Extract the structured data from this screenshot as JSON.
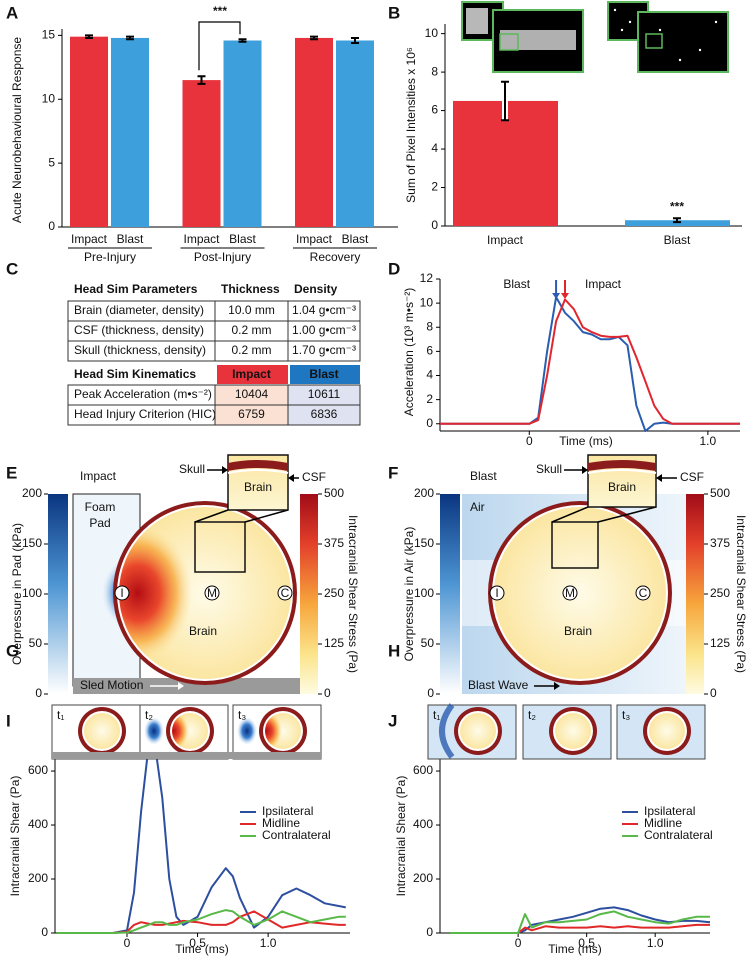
{
  "panel_labels": [
    "A",
    "B",
    "C",
    "D",
    "E",
    "F",
    "G",
    "H",
    "I",
    "J"
  ],
  "chart_data": [
    {
      "type": "grouped-bar",
      "y_label": "Acute Neurobehavioural Response",
      "groups": [
        "Pre-Injury",
        "Post-Injury",
        "Recovery"
      ],
      "series": [
        {
          "name": "Impact",
          "color": "#e8323c",
          "values": [
            14.9,
            11.5,
            14.8
          ],
          "errors": [
            0.1,
            0.3,
            0.1
          ]
        },
        {
          "name": "Blast",
          "color": "#3d9fdb",
          "values": [
            14.8,
            14.6,
            14.6
          ],
          "errors": [
            0.1,
            0.1,
            0.2
          ]
        }
      ],
      "ylim": [
        0,
        15.5
      ],
      "yticks": [
        0,
        5,
        10,
        15
      ],
      "annotation": "***"
    },
    {
      "type": "bar",
      "y_label": "Sum of Pixel Intensities x 10⁶",
      "categories": [
        "Impact",
        "Blast"
      ],
      "values": [
        6.5,
        0.3
      ],
      "errors": [
        1.0,
        0.1
      ],
      "colors": [
        "#e8323c",
        "#3d9fdb"
      ],
      "ylim": [
        0,
        10.5
      ],
      "yticks": [
        0,
        2,
        4,
        6,
        8,
        10
      ],
      "annotation": "***"
    },
    {
      "type": "line",
      "y_label": "Acceleration (10³ m•s⁻²)",
      "x_label": "Time (ms)",
      "x": [
        -0.5,
        -0.4,
        -0.3,
        -0.2,
        -0.1,
        0,
        0.05,
        0.1,
        0.15,
        0.2,
        0.25,
        0.3,
        0.35,
        0.4,
        0.45,
        0.5,
        0.55,
        0.6,
        0.65,
        0.7,
        0.75,
        0.8,
        0.9,
        1.0,
        1.1,
        1.18
      ],
      "series": [
        {
          "name": "Blast",
          "color": "#2a5db0",
          "values": [
            0,
            0,
            0,
            0,
            0,
            0,
            0.5,
            6,
            10.5,
            9.2,
            8.5,
            7.6,
            7.4,
            7.0,
            7.0,
            7.2,
            6.5,
            1.5,
            -0.6,
            0,
            0.1,
            0,
            0,
            0,
            0,
            0
          ]
        },
        {
          "name": "Impact",
          "color": "#e0262f",
          "values": [
            0,
            0,
            0,
            0,
            0,
            0,
            0.3,
            4,
            8.5,
            10.3,
            9.5,
            8.0,
            7.6,
            7.3,
            7.2,
            7.2,
            7.3,
            5.5,
            3.5,
            1.5,
            0.4,
            0,
            0,
            0,
            0,
            0
          ]
        }
      ],
      "xlim": [
        -0.5,
        1.18
      ],
      "xticks": [
        0,
        {
          "value": 1,
          "label": "1.0"
        }
      ],
      "ylim": [
        -0.6,
        12
      ],
      "yticks": [
        0,
        2,
        4,
        6,
        8,
        10,
        12
      ]
    },
    {
      "type": "line",
      "y_label": "Intracranial Shear (Pa)",
      "x_label": "Time (ms)",
      "x": [
        -0.5,
        -0.4,
        -0.3,
        -0.2,
        -0.1,
        0,
        0.05,
        0.1,
        0.15,
        0.2,
        0.25,
        0.3,
        0.35,
        0.4,
        0.5,
        0.6,
        0.7,
        0.75,
        0.8,
        0.9,
        1.0,
        1.1,
        1.2,
        1.3,
        1.4,
        1.5,
        1.55
      ],
      "series": [
        {
          "name": "Ipsilateral",
          "color": "#2d4fa0",
          "values": [
            0,
            0,
            0,
            0,
            0,
            10,
            150,
            450,
            680,
            690,
            500,
            200,
            60,
            30,
            60,
            170,
            240,
            210,
            130,
            20,
            60,
            140,
            165,
            140,
            110,
            100,
            95
          ]
        },
        {
          "name": "Midline",
          "color": "#e02828",
          "values": [
            0,
            0,
            0,
            0,
            0,
            5,
            30,
            40,
            35,
            30,
            30,
            35,
            40,
            45,
            40,
            30,
            30,
            40,
            60,
            80,
            50,
            20,
            30,
            40,
            35,
            30,
            30
          ]
        },
        {
          "name": "Contralateral",
          "color": "#58b848",
          "values": [
            0,
            0,
            0,
            0,
            0,
            2,
            10,
            20,
            30,
            40,
            40,
            30,
            30,
            40,
            50,
            70,
            85,
            80,
            60,
            30,
            50,
            80,
            60,
            40,
            50,
            60,
            60
          ]
        }
      ],
      "xlim": [
        -0.51,
        1.58
      ],
      "xticks": [
        0,
        0.5,
        {
          "value": 1,
          "label": "1.0"
        }
      ],
      "ylim": [
        0,
        715
      ],
      "yticks": [
        0,
        200,
        400,
        600
      ]
    },
    {
      "type": "line",
      "y_label": "Intracranial Shear (Pa)",
      "x_label": "Time (ms)",
      "x": [
        -0.5,
        -0.4,
        -0.3,
        -0.2,
        -0.1,
        0,
        0.05,
        0.1,
        0.2,
        0.3,
        0.4,
        0.5,
        0.6,
        0.7,
        0.8,
        0.9,
        1.0,
        1.1,
        1.2,
        1.3,
        1.4
      ],
      "series": [
        {
          "name": "Ipsilateral",
          "color": "#2d4fa0",
          "values": [
            0,
            0,
            0,
            0,
            0,
            0,
            10,
            30,
            40,
            50,
            60,
            75,
            90,
            95,
            85,
            65,
            50,
            40,
            45,
            45,
            40
          ]
        },
        {
          "name": "Midline",
          "color": "#e02828",
          "values": [
            0,
            0,
            0,
            0,
            0,
            0,
            20,
            10,
            25,
            20,
            20,
            20,
            25,
            20,
            25,
            20,
            20,
            20,
            25,
            30,
            30
          ]
        },
        {
          "name": "Contralateral",
          "color": "#58b848",
          "values": [
            0,
            0,
            0,
            0,
            0,
            0,
            70,
            20,
            40,
            40,
            45,
            50,
            70,
            80,
            60,
            50,
            40,
            35,
            50,
            60,
            60
          ]
        }
      ],
      "xlim": [
        -0.57,
        1.4
      ],
      "xticks": [
        0,
        0.5,
        {
          "value": 1,
          "label": "1.0"
        }
      ],
      "ylim": [
        0,
        715
      ],
      "yticks": [
        0,
        200,
        400,
        600
      ]
    }
  ],
  "table_c": {
    "parameters": {
      "header": [
        "Head Sim Parameters",
        "Thickness",
        "Density"
      ],
      "rows": [
        [
          "Brain (diameter, density)",
          "10.0 mm",
          "1.04 g•cm⁻³"
        ],
        [
          "CSF (thickness, density)",
          "0.2 mm",
          "1.00 g•cm⁻³"
        ],
        [
          "Skull (thickness, density)",
          "0.2 mm",
          "1.70 g•cm⁻³"
        ]
      ]
    },
    "kinematics": {
      "header": [
        "Head Sim Kinematics",
        "Impact",
        "Blast"
      ],
      "rows": [
        [
          "Peak Acceleration (m•s⁻²)",
          10404,
          10611
        ],
        [
          "Head Injury Criterion (HIC)",
          6759,
          6836
        ]
      ]
    }
  },
  "simulations": [
    {
      "title": "Impact",
      "medium_label": [
        "Foam",
        "Pad"
      ],
      "skull": "Skull",
      "csf": "CSF",
      "inset_label": "Brain",
      "regions": [
        "I",
        "M",
        "C"
      ],
      "brain": "Brain",
      "motion": "Sled Motion",
      "left_label": "Overpressure in Pad (kPa)",
      "left_lim": [
        0,
        200
      ],
      "left_ticks": [
        0,
        50,
        100,
        150,
        200
      ],
      "right_label": "Intracranial Shear Stress (Pa)",
      "right_lim": [
        0,
        500
      ],
      "right_ticks": [
        0,
        125,
        250,
        375,
        500
      ],
      "frames": [
        "t₁",
        "t₂",
        "t₃"
      ]
    },
    {
      "title": "Blast",
      "medium_label": [
        "Air"
      ],
      "skull": "Skull",
      "csf": "CSF",
      "inset_label": "Brain",
      "regions": [
        "I",
        "M",
        "C"
      ],
      "brain": "Brain",
      "motion": "Blast Wave",
      "left_label": "Overpressure in Air (kPa)",
      "left_lim": [
        0,
        200
      ],
      "left_ticks": [
        0,
        50,
        100,
        150,
        200
      ],
      "right_label": "Intracranial Shear Stress (Pa)",
      "right_lim": [
        0,
        500
      ],
      "right_ticks": [
        0,
        125,
        250,
        375,
        500
      ],
      "frames": [
        "t₁",
        "t₂",
        "t₃"
      ]
    }
  ]
}
